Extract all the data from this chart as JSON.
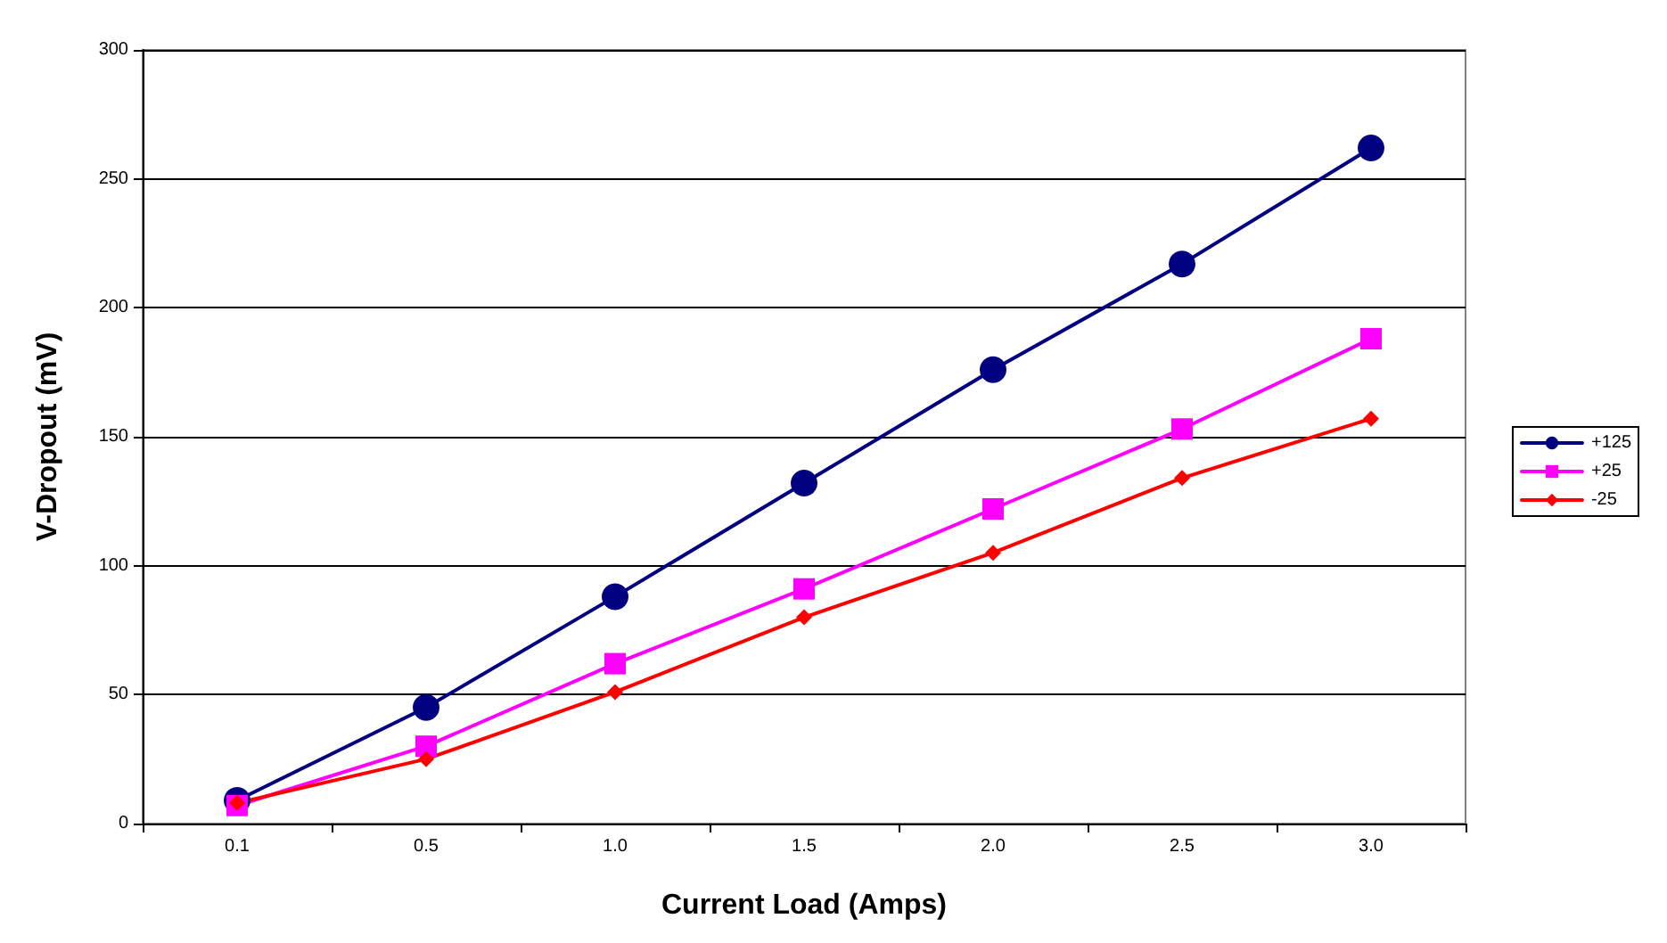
{
  "chart_data": {
    "type": "line",
    "xlabel": "Current Load (Amps)",
    "ylabel": "V-Dropout (mV)",
    "categories": [
      "0.1",
      "0.5",
      "1.0",
      "1.5",
      "2.0",
      "2.5",
      "3.0"
    ],
    "series": [
      {
        "name": "+125",
        "color": "#000080",
        "marker": "circle",
        "values": [
          9,
          45,
          88,
          132,
          176,
          217,
          262
        ]
      },
      {
        "name": "+25",
        "color": "#ff00ff",
        "marker": "square",
        "values": [
          7,
          30,
          62,
          91,
          122,
          153,
          188
        ]
      },
      {
        "name": "-25",
        "color": "#ff0000",
        "marker": "diamond",
        "values": [
          8,
          25,
          51,
          80,
          105,
          134,
          157
        ]
      }
    ],
    "ylim": [
      0,
      300
    ],
    "yticks": [
      0,
      50,
      100,
      150,
      200,
      250,
      300
    ],
    "grid": "y",
    "legend": "right",
    "line_style": "solid"
  }
}
